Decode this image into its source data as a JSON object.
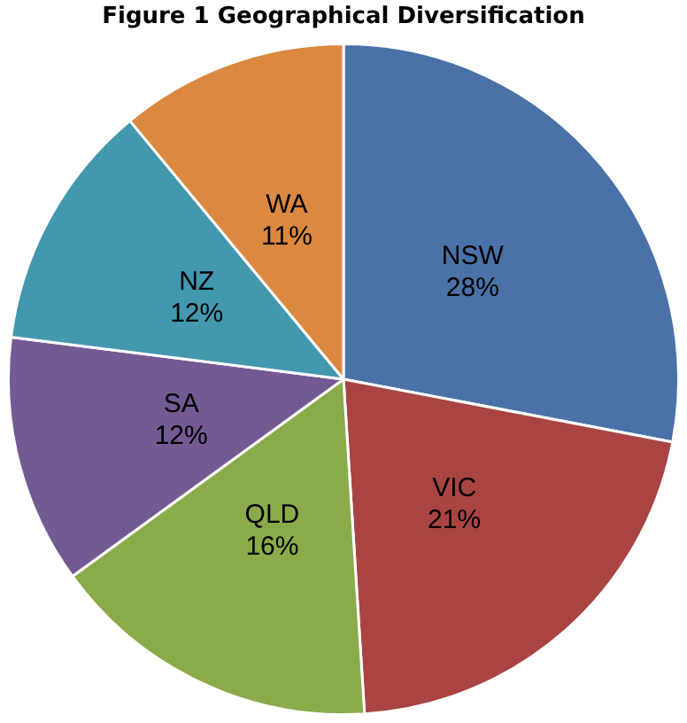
{
  "chart_data": {
    "type": "pie",
    "title": "Figure 1 Geographical Diversification",
    "categories": [
      "NSW",
      "VIC",
      "QLD",
      "SA",
      "NZ",
      "WA"
    ],
    "values": [
      28,
      21,
      16,
      12,
      12,
      11
    ],
    "value_labels": [
      "28%",
      "21%",
      "16%",
      "12%",
      "12%",
      "11%"
    ],
    "colors": [
      "#4a72a8",
      "#a94442",
      "#8aab4a",
      "#735a93",
      "#4398ae",
      "#db8840"
    ],
    "legend": false
  }
}
